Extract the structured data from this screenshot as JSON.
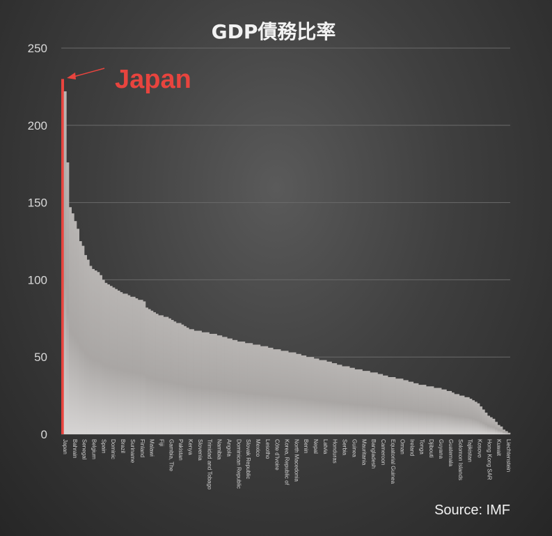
{
  "chart_data": {
    "type": "bar",
    "title": "GDP債務比率",
    "xlabel": "",
    "ylabel": "",
    "ylim": [
      0,
      250
    ],
    "yticks": [
      0,
      50,
      100,
      150,
      200,
      250
    ],
    "grid": "horizontal",
    "sort": "descending",
    "highlight_category": "Japan",
    "highlight_color": "#e8443e",
    "bar_color": "#c9c6c4",
    "annotation": "Japan",
    "source": "Source: IMF",
    "tick_labels": [
      "Japan",
      "Bahrain",
      "Senegal",
      "Belgium",
      "Spain",
      "Dominic",
      "Brazil",
      "Suriname",
      "Finland",
      "Malawi",
      "Fiji",
      "Gambia, The",
      "Pakistan",
      "Kenya",
      "Slovenia",
      "Trinidad and Tobago",
      "Namibia",
      "Angola",
      "Dominican Republic",
      "Slovak Republic",
      "Mexico",
      "Lesotho",
      "Côte d'Ivoire",
      "Korea, Republic of",
      "North Macedonia",
      "Benin",
      "Nepal",
      "Latvia",
      "Honduras",
      "Serbia",
      "Guinea",
      "Mauritania",
      "Bangladesh",
      "Cameroon",
      "Equatorial Guinea",
      "Oman",
      "Ireland",
      "Tonga",
      "Djibouti",
      "Guyana",
      "Guatemala",
      "Solomon Islands",
      "Tajikistan",
      "Kosovo",
      "Hong Kong SAR",
      "Kuwait",
      "Liechtenstein"
    ],
    "values": [
      230,
      222,
      176,
      147,
      143,
      138,
      133,
      125,
      122,
      116,
      113,
      109,
      107,
      106,
      105,
      103,
      100,
      98,
      97,
      96,
      95,
      94,
      93,
      92,
      91,
      91,
      90,
      89,
      89,
      88,
      87,
      87,
      86,
      82,
      81,
      80,
      79,
      78,
      77,
      77,
      76,
      76,
      75,
      74,
      73,
      72,
      72,
      71,
      70,
      69,
      68,
      68,
      67,
      67,
      67,
      66,
      66,
      66,
      65,
      65,
      65,
      64,
      64,
      63,
      63,
      62,
      62,
      61,
      61,
      60,
      60,
      60,
      59,
      59,
      59,
      58,
      58,
      58,
      57,
      57,
      57,
      56,
      56,
      55,
      55,
      55,
      54,
      54,
      54,
      53,
      53,
      53,
      52,
      52,
      51,
      51,
      50,
      50,
      50,
      49,
      49,
      48,
      48,
      48,
      47,
      47,
      46,
      46,
      45,
      45,
      44,
      44,
      44,
      43,
      43,
      42,
      42,
      42,
      41,
      41,
      41,
      40,
      40,
      40,
      39,
      39,
      38,
      38,
      37,
      37,
      37,
      36,
      36,
      36,
      35,
      35,
      34,
      34,
      33,
      33,
      32,
      32,
      32,
      31,
      31,
      31,
      30,
      30,
      30,
      29,
      29,
      28,
      28,
      27,
      26,
      26,
      25,
      25,
      24,
      24,
      23,
      22,
      21,
      20,
      18,
      16,
      14,
      12,
      11,
      10,
      8,
      6,
      5,
      3,
      2,
      1
    ]
  }
}
